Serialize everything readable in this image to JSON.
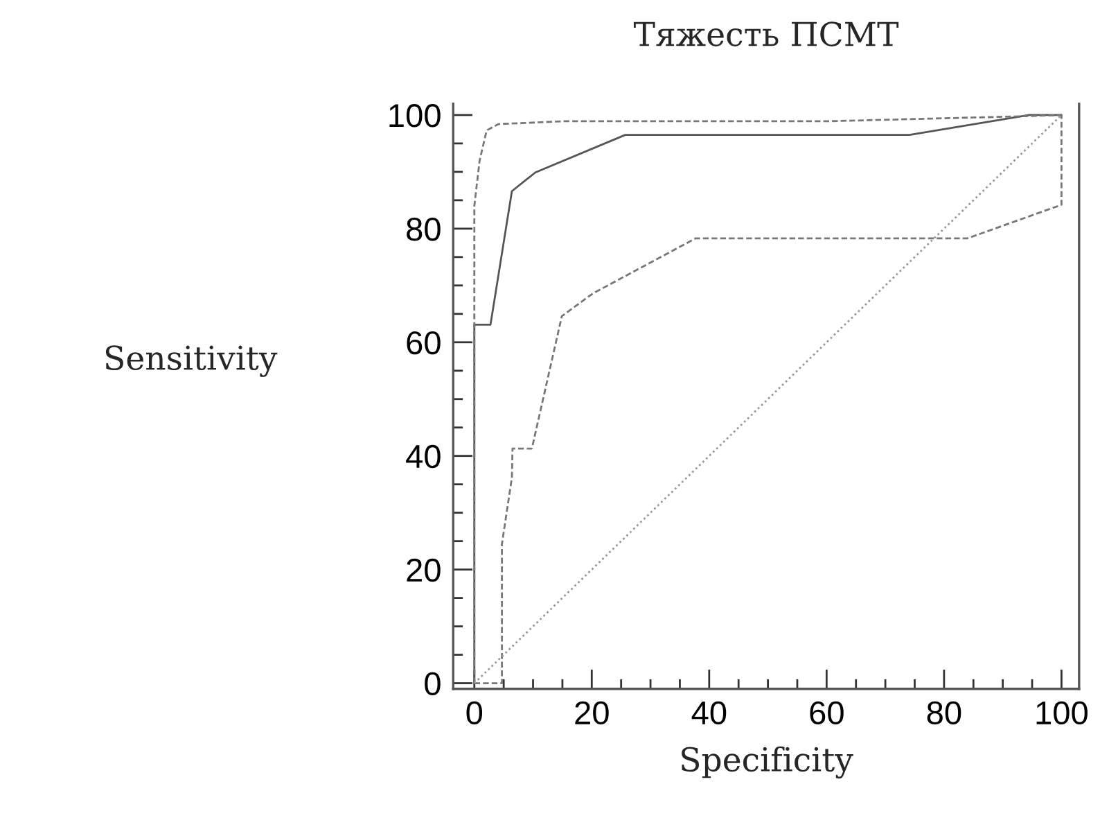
{
  "chart_data": {
    "type": "line",
    "title": "Тяжесть ПСМТ",
    "xlabel": "Specificity",
    "ylabel": "Sensitivity",
    "xlim": [
      -3.6,
      103
    ],
    "ylim": [
      -1,
      102
    ],
    "xticks": [
      0,
      {
        "value": 5,
        "label": null
      },
      {
        "value": 10,
        "label": null
      },
      {
        "value": 15,
        "label": null
      },
      20,
      {
        "value": 25,
        "label": null
      },
      {
        "value": 30,
        "label": null
      },
      {
        "value": 35,
        "label": null
      },
      40,
      {
        "value": 45,
        "label": null
      },
      {
        "value": 50,
        "label": null
      },
      {
        "value": 55,
        "label": null
      },
      60,
      {
        "value": 65,
        "label": null
      },
      {
        "value": 70,
        "label": null
      },
      {
        "value": 75,
        "label": null
      },
      80,
      {
        "value": 85,
        "label": null
      },
      {
        "value": 90,
        "label": null
      },
      {
        "value": 95,
        "label": null
      },
      100
    ],
    "yticks": [
      0,
      {
        "value": 5,
        "label": null
      },
      {
        "value": 10,
        "label": null
      },
      {
        "value": 15,
        "label": null
      },
      20,
      {
        "value": 25,
        "label": null
      },
      {
        "value": 30,
        "label": null
      },
      {
        "value": 35,
        "label": null
      },
      40,
      {
        "value": 45,
        "label": null
      },
      {
        "value": 50,
        "label": null
      },
      {
        "value": 55,
        "label": null
      },
      60,
      {
        "value": 65,
        "label": null
      },
      {
        "value": 70,
        "label": null
      },
      {
        "value": 75,
        "label": null
      },
      80,
      {
        "value": 85,
        "label": null
      },
      {
        "value": 90,
        "label": null
      },
      {
        "value": 95,
        "label": null
      },
      100
    ],
    "grid": false,
    "legend": false,
    "marker": "none",
    "series": [
      {
        "color": "#555555",
        "line_style": "solid",
        "x": [
          0,
          0,
          2.75,
          6.4,
          10.4,
          25.7,
          74.1,
          94.5,
          100
        ],
        "values": [
          0,
          63.1,
          63.1,
          86.6,
          89.9,
          96.5,
          96.5,
          100,
          100
        ]
      },
      {
        "color": "#777777",
        "line_style": "dashed",
        "x": [
          0,
          0,
          0.9,
          2.1,
          4.1,
          15.1,
          60,
          94,
          100
        ],
        "values": [
          0,
          84,
          92,
          97.3,
          98.4,
          98.9,
          98.9,
          99.8,
          100
        ]
      },
      {
        "color": "#777777",
        "line_style": "dashed",
        "x": [
          0,
          4.7,
          4.7,
          6.4,
          6.5,
          9.8,
          14.9,
          20.2,
          37.7,
          84,
          100,
          100
        ],
        "values": [
          0,
          0,
          24.5,
          36.2,
          41.3,
          41.3,
          64.6,
          68.6,
          78.3,
          78.3,
          84.2,
          100
        ]
      },
      {
        "color": "#999999",
        "line_style": "dotted",
        "x": [
          0,
          100
        ],
        "values": [
          0,
          100
        ]
      }
    ]
  }
}
